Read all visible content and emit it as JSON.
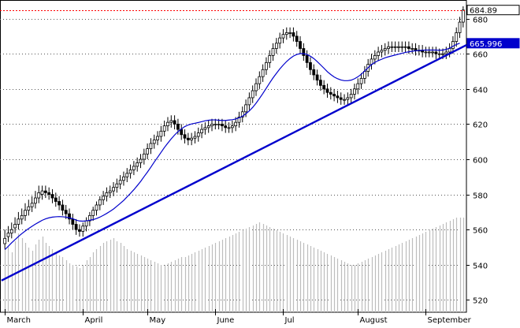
{
  "chart_data": {
    "type": "candlestick",
    "x_axis": {
      "labels": [
        "March",
        "April",
        "May",
        "June",
        "Jul",
        "August",
        "September"
      ],
      "label_day_index": [
        0,
        23,
        42,
        62,
        82,
        104,
        124
      ]
    },
    "y_axis": {
      "ticks": [
        520,
        540,
        560,
        580,
        600,
        620,
        640,
        660,
        680
      ],
      "range": [
        513,
        687
      ],
      "grid": true,
      "side": "right"
    },
    "price_tags": [
      {
        "value": "684.89",
        "color": "#000000",
        "fill": "#ffffff",
        "at": 684.89
      },
      {
        "value": "665.996",
        "color": "#ffffff",
        "fill": "#0000cc",
        "at": 666.0
      }
    ],
    "reference_line": {
      "value": 684.89,
      "color": "#ff0000",
      "style": "dotted"
    },
    "trendline": {
      "color": "#0000cc",
      "from": [
        0,
        531
      ],
      "to": [
        136,
        665
      ]
    },
    "moving_average": {
      "color": "#0000cc",
      "values": [
        548.6,
        550.5,
        552.5,
        554.3,
        556.1,
        557.7,
        559.2,
        560.6,
        561.9,
        563.1,
        564.2,
        565.3,
        566.1,
        566.7,
        567.1,
        567.3,
        567.4,
        567.3,
        567.1,
        566.7,
        566.2,
        565.4,
        564.9,
        564.8,
        565.0,
        565.3,
        565.7,
        566.3,
        567.1,
        568.1,
        569.2,
        570.4,
        571.7,
        573.3,
        574.9,
        576.6,
        578.6,
        580.6,
        582.7,
        585.0,
        587.4,
        590.1,
        592.7,
        595.5,
        598.4,
        601.1,
        603.9,
        606.7,
        609.2,
        611.6,
        613.8,
        615.7,
        617.3,
        618.6,
        619.5,
        620.1,
        620.5,
        620.9,
        621.4,
        621.9,
        622.2,
        622.4,
        622.4,
        622.2,
        622.1,
        622.1,
        622.3,
        622.5,
        622.9,
        623.6,
        624.5,
        625.9,
        627.5,
        629.5,
        631.9,
        634.6,
        637.4,
        640.4,
        643.4,
        646.3,
        648.9,
        651.4,
        653.6,
        655.6,
        657.3,
        658.7,
        659.6,
        660.1,
        660.1,
        659.6,
        658.6,
        657.3,
        655.6,
        653.7,
        651.8,
        649.8,
        648.2,
        646.8,
        645.8,
        645.1,
        644.7,
        644.7,
        645.0,
        645.8,
        646.9,
        648.4,
        650.2,
        652.1,
        653.8,
        655.1,
        656.1,
        656.9,
        657.7,
        658.3,
        658.8,
        659.3,
        659.8,
        660.3,
        660.8,
        661.1,
        661.5,
        661.7,
        661.9,
        662.0,
        662.1,
        662.1,
        662.1,
        662.1,
        662.0,
        662.1,
        662.5,
        663.2,
        664.3,
        665.3,
        666.0
      ]
    },
    "series": [
      {
        "name": "close",
        "values": [
          555,
          558,
          560,
          563,
          566,
          568,
          571,
          573,
          575,
          578,
          581,
          582,
          581,
          580,
          578,
          576,
          574,
          571,
          569,
          566,
          563,
          560,
          559,
          562,
          565,
          568,
          571,
          574,
          577,
          579,
          581,
          582,
          584,
          586,
          588,
          590,
          592,
          594,
          596,
          598,
          600,
          603,
          606,
          609,
          611,
          613,
          616,
          619,
          621,
          622,
          620,
          617,
          614,
          612,
          611,
          612,
          613,
          615,
          617,
          618,
          619,
          620,
          620,
          620,
          619,
          618,
          618,
          619,
          621,
          624,
          627,
          631,
          635,
          639,
          643,
          647,
          651,
          655,
          659,
          663,
          666,
          669,
          671,
          672,
          672,
          670,
          667,
          663,
          659,
          655,
          651,
          648,
          645,
          642,
          640,
          638,
          637,
          636,
          635,
          634,
          634,
          635,
          637,
          640,
          643,
          646,
          650,
          654,
          657,
          659,
          661,
          662,
          663,
          664,
          664,
          664,
          664,
          664,
          664,
          663,
          663,
          662,
          662,
          661,
          661,
          661,
          661,
          660,
          660,
          660,
          661,
          663,
          667,
          672,
          678,
          684.89
        ]
      },
      {
        "name": "open",
        "values": [
          552,
          556,
          558,
          561,
          563,
          566,
          568,
          571,
          573,
          575,
          578,
          580,
          582,
          581,
          580,
          578,
          576,
          574,
          571,
          569,
          566,
          563,
          560,
          559,
          562,
          565,
          568,
          571,
          574,
          577,
          579,
          581,
          582,
          584,
          586,
          588,
          590,
          592,
          594,
          596,
          598,
          600,
          603,
          606,
          609,
          611,
          613,
          616,
          619,
          621,
          622,
          620,
          617,
          614,
          612,
          611,
          612,
          613,
          615,
          617,
          618,
          619,
          620,
          620,
          620,
          619,
          618,
          618,
          619,
          621,
          624,
          627,
          631,
          635,
          639,
          643,
          647,
          651,
          655,
          659,
          663,
          666,
          669,
          671,
          672,
          672,
          670,
          667,
          663,
          659,
          655,
          651,
          648,
          645,
          642,
          640,
          638,
          637,
          636,
          635,
          634,
          634,
          635,
          637,
          640,
          643,
          646,
          650,
          654,
          657,
          659,
          661,
          662,
          663,
          664,
          664,
          664,
          664,
          664,
          664,
          663,
          663,
          662,
          662,
          661,
          661,
          661,
          661,
          660,
          660,
          660,
          661,
          663,
          667,
          672,
          678
        ]
      },
      {
        "name": "high",
        "values": [
          560,
          562,
          564,
          567,
          570,
          572,
          575,
          577,
          579,
          582,
          585,
          585,
          585,
          584,
          583,
          581,
          579,
          577,
          574,
          572,
          569,
          566,
          563,
          564,
          567,
          570,
          573,
          576,
          579,
          582,
          584,
          585,
          587,
          589,
          591,
          593,
          595,
          597,
          599,
          601,
          603,
          606,
          609,
          612,
          614,
          616,
          619,
          622,
          624,
          625,
          625,
          623,
          620,
          617,
          615,
          615,
          616,
          618,
          620,
          621,
          622,
          623,
          623,
          623,
          623,
          622,
          621,
          622,
          624,
          627,
          630,
          634,
          638,
          642,
          646,
          650,
          654,
          658,
          662,
          666,
          669,
          672,
          674,
          675,
          675,
          675,
          673,
          670,
          666,
          662,
          658,
          654,
          651,
          648,
          645,
          643,
          641,
          640,
          639,
          638,
          637,
          638,
          640,
          643,
          646,
          649,
          653,
          657,
          660,
          662,
          664,
          665,
          666,
          667,
          667,
          667,
          667,
          667,
          667,
          667,
          666,
          666,
          665,
          665,
          664,
          664,
          664,
          664,
          663,
          663,
          664,
          666,
          670,
          675,
          681,
          687
        ]
      },
      {
        "name": "low",
        "values": [
          549,
          553,
          555,
          558,
          560,
          563,
          565,
          568,
          570,
          572,
          575,
          577,
          578,
          577,
          575,
          573,
          571,
          568,
          566,
          563,
          560,
          557,
          556,
          556,
          559,
          562,
          565,
          568,
          571,
          574,
          576,
          578,
          579,
          581,
          583,
          585,
          587,
          589,
          591,
          593,
          595,
          597,
          600,
          603,
          606,
          608,
          610,
          613,
          616,
          618,
          617,
          614,
          611,
          609,
          608,
          608,
          609,
          610,
          612,
          614,
          615,
          616,
          617,
          617,
          616,
          615,
          615,
          615,
          616,
          618,
          621,
          624,
          628,
          632,
          636,
          640,
          644,
          648,
          652,
          656,
          660,
          663,
          666,
          668,
          669,
          667,
          664,
          660,
          656,
          652,
          648,
          645,
          642,
          639,
          637,
          635,
          634,
          633,
          632,
          631,
          631,
          631,
          632,
          634,
          637,
          640,
          643,
          647,
          651,
          654,
          656,
          658,
          659,
          660,
          661,
          661,
          661,
          661,
          661,
          660,
          660,
          659,
          659,
          658,
          658,
          658,
          658,
          657,
          657,
          657,
          657,
          658,
          660,
          664,
          669,
          675
        ]
      },
      {
        "name": "volume",
        "values": [
          40,
          42,
          38,
          45,
          50,
          47,
          44,
          41,
          39,
          43,
          46,
          48,
          44,
          42,
          40,
          38,
          36,
          35,
          33,
          31,
          30,
          29,
          28,
          30,
          33,
          35,
          38,
          40,
          42,
          44,
          45,
          46,
          47,
          45,
          44,
          42,
          40,
          39,
          38,
          37,
          36,
          35,
          34,
          33,
          32,
          31,
          30,
          30,
          31,
          32,
          33,
          34,
          35,
          35,
          36,
          37,
          38,
          39,
          40,
          41,
          42,
          43,
          44,
          45,
          46,
          47,
          48,
          49,
          50,
          51,
          52,
          53,
          54,
          55,
          56,
          57,
          56,
          55,
          54,
          53,
          52,
          51,
          50,
          49,
          48,
          47,
          46,
          45,
          44,
          43,
          42,
          41,
          40,
          39,
          38,
          37,
          36,
          35,
          34,
          33,
          32,
          31,
          30,
          30,
          31,
          32,
          33,
          34,
          35,
          36,
          37,
          38,
          39,
          40,
          41,
          42,
          43,
          44,
          45,
          46,
          47,
          48,
          49,
          50,
          51,
          52,
          53,
          54,
          55,
          56,
          57,
          58,
          59,
          60,
          60,
          60
        ]
      }
    ]
  }
}
